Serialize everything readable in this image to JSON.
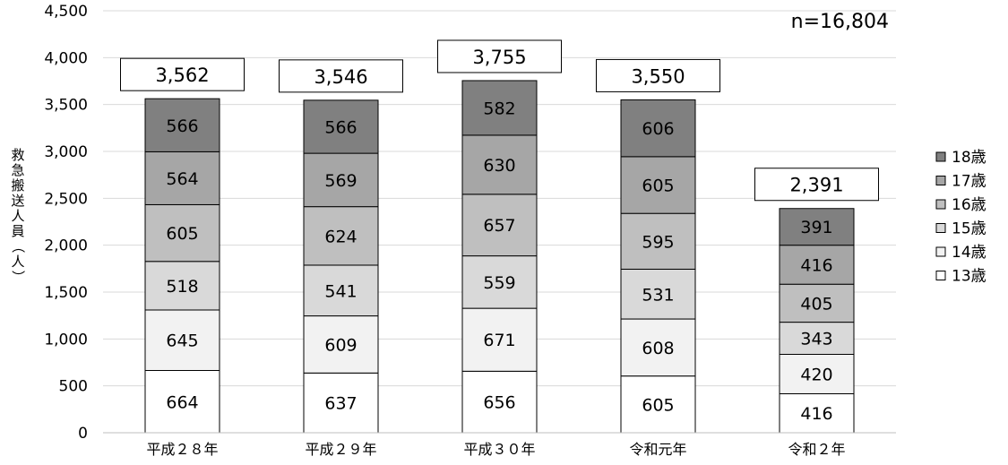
{
  "chart_data": {
    "type": "bar",
    "stacked": true,
    "categories": [
      "平成２８年",
      "平成２９年",
      "平成３０年",
      "令和元年",
      "令和２年"
    ],
    "series": [
      {
        "name": "13歳",
        "color": "#ffffff",
        "values": [
          664,
          637,
          656,
          605,
          416
        ]
      },
      {
        "name": "14歳",
        "color": "#f2f2f2",
        "values": [
          645,
          609,
          671,
          608,
          420
        ]
      },
      {
        "name": "15歳",
        "color": "#d9d9d9",
        "values": [
          518,
          541,
          559,
          531,
          343
        ]
      },
      {
        "name": "16歳",
        "color": "#bfbfbf",
        "values": [
          605,
          624,
          657,
          595,
          405
        ]
      },
      {
        "name": "17歳",
        "color": "#a6a6a6",
        "values": [
          564,
          569,
          630,
          605,
          416
        ]
      },
      {
        "name": "18歳",
        "color": "#808080",
        "values": [
          566,
          566,
          582,
          606,
          391
        ]
      }
    ],
    "totals": [
      "3,562",
      "3,546",
      "3,755",
      "3,550",
      "2,391"
    ],
    "annotation": "n=16,804",
    "ylabel": "救急搬送人員（人）",
    "ylim": [
      0,
      4500
    ],
    "yticks": [
      "0",
      "500",
      "1,000",
      "1,500",
      "2,000",
      "2,500",
      "3,000",
      "3,500",
      "4,000",
      "4,500"
    ],
    "grid": true,
    "legend_position": "right"
  }
}
